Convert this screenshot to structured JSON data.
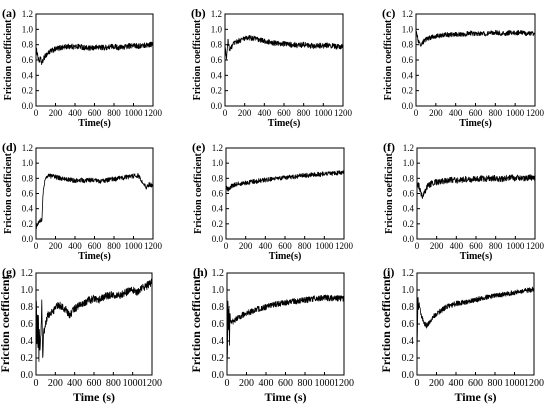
{
  "chart_data": [
    {
      "panel": "(a)",
      "type": "line",
      "title": "",
      "xlabel": "Time(s)",
      "ylabel": "Friction coefficient",
      "xlim": [
        0,
        1200
      ],
      "ylim": [
        0,
        1.2
      ],
      "xticks": [
        "0",
        "200",
        "400",
        "600",
        "800",
        "1000",
        "1200"
      ],
      "yticks": [
        "0.0",
        "0.2",
        "0.4",
        "0.6",
        "0.8",
        "1.0",
        "1.2"
      ],
      "grid": false,
      "noise": 0.035,
      "series": [
        {
          "x": [
            0,
            15,
            30,
            45,
            60,
            80,
            100,
            130,
            160,
            200,
            250,
            300,
            350,
            400,
            450,
            500,
            550,
            600,
            650,
            700,
            750,
            800,
            850,
            900,
            950,
            1000,
            1050,
            1100,
            1150,
            1200
          ],
          "y": [
            0.75,
            0.68,
            0.58,
            0.62,
            0.55,
            0.62,
            0.66,
            0.7,
            0.72,
            0.74,
            0.76,
            0.77,
            0.78,
            0.77,
            0.78,
            0.76,
            0.75,
            0.76,
            0.77,
            0.76,
            0.77,
            0.78,
            0.76,
            0.77,
            0.78,
            0.79,
            0.78,
            0.79,
            0.8,
            0.81
          ]
        }
      ]
    },
    {
      "panel": "(b)",
      "type": "line",
      "title": "",
      "xlabel": "Time(s)",
      "ylabel": "Friction coefficient",
      "xlim": [
        0,
        1200
      ],
      "ylim": [
        0,
        1.2
      ],
      "xticks": [
        "0",
        "200",
        "400",
        "600",
        "800",
        "1000",
        "1200"
      ],
      "yticks": [
        "0.0",
        "0.2",
        "0.4",
        "0.6",
        "0.8",
        "1.0",
        "1.2"
      ],
      "grid": false,
      "noise": 0.035,
      "series": [
        {
          "x": [
            0,
            15,
            30,
            50,
            80,
            120,
            160,
            200,
            250,
            300,
            350,
            400,
            450,
            500,
            550,
            600,
            650,
            700,
            750,
            800,
            850,
            900,
            950,
            1000,
            1050,
            1100,
            1150,
            1200
          ],
          "y": [
            0.8,
            0.62,
            0.85,
            0.72,
            0.8,
            0.84,
            0.86,
            0.88,
            0.89,
            0.88,
            0.86,
            0.85,
            0.83,
            0.82,
            0.82,
            0.81,
            0.8,
            0.8,
            0.79,
            0.8,
            0.79,
            0.78,
            0.79,
            0.78,
            0.8,
            0.78,
            0.77,
            0.78
          ]
        }
      ]
    },
    {
      "panel": "(c)",
      "type": "line",
      "title": "",
      "xlabel": "Time(s)",
      "ylabel": "Friction coefficient",
      "xlim": [
        0,
        1200
      ],
      "ylim": [
        0,
        1.2
      ],
      "xticks": [
        "0",
        "200",
        "400",
        "600",
        "800",
        "1000",
        "1200"
      ],
      "yticks": [
        "0.0",
        "0.2",
        "0.4",
        "0.6",
        "0.8",
        "1.0",
        "1.2"
      ],
      "grid": false,
      "noise": 0.03,
      "series": [
        {
          "x": [
            0,
            15,
            30,
            50,
            80,
            120,
            160,
            200,
            250,
            300,
            350,
            400,
            450,
            500,
            550,
            600,
            650,
            700,
            750,
            800,
            850,
            900,
            950,
            1000,
            1050,
            1100,
            1150,
            1200
          ],
          "y": [
            0.98,
            0.9,
            0.82,
            0.78,
            0.85,
            0.88,
            0.9,
            0.91,
            0.92,
            0.93,
            0.93,
            0.94,
            0.93,
            0.94,
            0.95,
            0.94,
            0.95,
            0.94,
            0.95,
            0.96,
            0.95,
            0.94,
            0.96,
            0.95,
            0.96,
            0.95,
            0.94,
            0.95
          ]
        }
      ]
    },
    {
      "panel": "(d)",
      "type": "line",
      "title": "",
      "xlabel": "Time(s)",
      "ylabel": "Friction coefficient",
      "xlim": [
        0,
        1200
      ],
      "ylim": [
        0,
        1.2
      ],
      "xticks": [
        "0",
        "200",
        "400",
        "600",
        "800",
        "1000",
        "1200"
      ],
      "yticks": [
        "0.0",
        "0.2",
        "0.4",
        "0.6",
        "0.8",
        "1.0",
        "1.2"
      ],
      "grid": false,
      "noise": 0.03,
      "series": [
        {
          "x": [
            0,
            10,
            20,
            40,
            60,
            70,
            80,
            100,
            120,
            150,
            200,
            250,
            300,
            350,
            400,
            450,
            500,
            550,
            600,
            650,
            700,
            750,
            800,
            850,
            900,
            950,
            1000,
            1050,
            1080,
            1100,
            1130,
            1160,
            1200
          ],
          "y": [
            0.15,
            0.18,
            0.22,
            0.24,
            0.25,
            0.55,
            0.7,
            0.8,
            0.84,
            0.83,
            0.82,
            0.8,
            0.79,
            0.78,
            0.77,
            0.78,
            0.77,
            0.78,
            0.77,
            0.76,
            0.77,
            0.78,
            0.79,
            0.8,
            0.81,
            0.82,
            0.83,
            0.84,
            0.76,
            0.72,
            0.68,
            0.72,
            0.7
          ]
        }
      ]
    },
    {
      "panel": "(e)",
      "type": "line",
      "title": "",
      "xlabel": "Time(s)",
      "ylabel": "Friction coefficient",
      "xlim": [
        0,
        1200
      ],
      "ylim": [
        0,
        1.2
      ],
      "xticks": [
        "0",
        "200",
        "400",
        "600",
        "800",
        "1000",
        "1200"
      ],
      "yticks": [
        "0.0",
        "0.2",
        "0.4",
        "0.6",
        "0.8",
        "1.0",
        "1.2"
      ],
      "grid": false,
      "noise": 0.03,
      "series": [
        {
          "x": [
            0,
            20,
            40,
            60,
            100,
            150,
            200,
            250,
            300,
            350,
            400,
            450,
            500,
            550,
            600,
            650,
            700,
            750,
            800,
            850,
            900,
            950,
            1000,
            1050,
            1100,
            1150,
            1200
          ],
          "y": [
            0.7,
            0.65,
            0.68,
            0.7,
            0.72,
            0.73,
            0.74,
            0.75,
            0.76,
            0.77,
            0.78,
            0.79,
            0.8,
            0.8,
            0.81,
            0.82,
            0.82,
            0.83,
            0.84,
            0.84,
            0.85,
            0.85,
            0.86,
            0.86,
            0.87,
            0.87,
            0.88
          ]
        }
      ]
    },
    {
      "panel": "(f)",
      "type": "line",
      "title": "",
      "xlabel": "Time(s)",
      "ylabel": "Friction coefficient",
      "xlim": [
        0,
        1200
      ],
      "ylim": [
        0,
        1.2
      ],
      "xticks": [
        "0",
        "200",
        "400",
        "600",
        "800",
        "1000",
        "1200"
      ],
      "yticks": [
        "0.0",
        "0.2",
        "0.4",
        "0.6",
        "0.8",
        "1.0",
        "1.2"
      ],
      "grid": false,
      "noise": 0.04,
      "series": [
        {
          "x": [
            0,
            20,
            40,
            60,
            80,
            100,
            130,
            160,
            200,
            250,
            300,
            350,
            400,
            450,
            500,
            550,
            600,
            650,
            700,
            750,
            800,
            850,
            900,
            950,
            1000,
            1050,
            1100,
            1150,
            1200
          ],
          "y": [
            0.72,
            0.7,
            0.6,
            0.55,
            0.62,
            0.68,
            0.72,
            0.74,
            0.75,
            0.76,
            0.77,
            0.78,
            0.77,
            0.78,
            0.79,
            0.78,
            0.79,
            0.8,
            0.79,
            0.8,
            0.8,
            0.79,
            0.8,
            0.81,
            0.8,
            0.81,
            0.8,
            0.81,
            0.8
          ]
        }
      ]
    },
    {
      "panel": "(g)",
      "type": "line",
      "title": "",
      "xlabel": "Time (s)",
      "ylabel": "Friction coefficient",
      "xlim": [
        0,
        1200
      ],
      "ylim": [
        0,
        1.2
      ],
      "xticks": [
        "0",
        "200",
        "400",
        "600",
        "800",
        "1000",
        "1200"
      ],
      "yticks": [
        "0.0",
        "0.2",
        "0.4",
        "0.6",
        "0.8",
        "1.0",
        "1.2"
      ],
      "grid": false,
      "noise": 0.045,
      "series": [
        {
          "x": [
            0,
            5,
            10,
            15,
            20,
            25,
            30,
            35,
            40,
            50,
            60,
            70,
            80,
            100,
            120,
            150,
            180,
            200,
            250,
            300,
            350,
            400,
            450,
            500,
            550,
            600,
            650,
            700,
            750,
            800,
            850,
            900,
            950,
            1000,
            1050,
            1100,
            1150,
            1200
          ],
          "y": [
            0.2,
            0.95,
            0.3,
            0.8,
            0.25,
            0.7,
            0.2,
            0.55,
            0.3,
            0.45,
            0.85,
            0.2,
            0.5,
            0.6,
            0.7,
            0.72,
            0.75,
            0.8,
            0.82,
            0.78,
            0.7,
            0.78,
            0.82,
            0.85,
            0.88,
            0.9,
            0.88,
            0.92,
            0.94,
            0.95,
            0.93,
            0.96,
            0.98,
            1.0,
            0.97,
            1.02,
            1.05,
            1.1
          ]
        }
      ]
    },
    {
      "panel": "(h)",
      "type": "line",
      "title": "",
      "xlabel": "Time (s)",
      "ylabel": "Friction coefficient",
      "xlim": [
        0,
        1200
      ],
      "ylim": [
        0,
        1.2
      ],
      "xticks": [
        "0",
        "200",
        "400",
        "600",
        "800",
        "1000",
        "1200"
      ],
      "yticks": [
        "0.0",
        "0.2",
        "0.4",
        "0.6",
        "0.8",
        "1.0",
        "1.2"
      ],
      "grid": false,
      "noise": 0.035,
      "series": [
        {
          "x": [
            0,
            5,
            10,
            15,
            20,
            25,
            30,
            40,
            50,
            70,
            100,
            150,
            200,
            250,
            300,
            350,
            400,
            450,
            500,
            550,
            600,
            650,
            700,
            750,
            800,
            850,
            900,
            950,
            1000,
            1050,
            1100,
            1150,
            1200
          ],
          "y": [
            0.1,
            0.25,
            1.0,
            0.4,
            0.85,
            0.3,
            0.7,
            0.65,
            0.62,
            0.64,
            0.66,
            0.7,
            0.72,
            0.75,
            0.77,
            0.78,
            0.8,
            0.82,
            0.83,
            0.84,
            0.85,
            0.86,
            0.87,
            0.87,
            0.88,
            0.89,
            0.9,
            0.9,
            0.91,
            0.9,
            0.91,
            0.9,
            0.9
          ]
        }
      ]
    },
    {
      "panel": "(i)",
      "type": "line",
      "title": "",
      "xlabel": "Time (s)",
      "ylabel": "Friction coefficient",
      "xlim": [
        0,
        1200
      ],
      "ylim": [
        0,
        1.2
      ],
      "xticks": [
        "0",
        "200",
        "400",
        "600",
        "800",
        "1000",
        "1200"
      ],
      "yticks": [
        "0.0",
        "0.2",
        "0.4",
        "0.6",
        "0.8",
        "1.0",
        "1.2"
      ],
      "grid": false,
      "noise": 0.03,
      "series": [
        {
          "x": [
            0,
            5,
            10,
            15,
            20,
            30,
            40,
            60,
            80,
            100,
            130,
            160,
            200,
            250,
            300,
            350,
            400,
            450,
            500,
            550,
            600,
            650,
            700,
            750,
            800,
            850,
            900,
            950,
            1000,
            1050,
            1100,
            1150,
            1200
          ],
          "y": [
            0.3,
            0.55,
            0.95,
            0.75,
            0.85,
            0.78,
            0.72,
            0.65,
            0.6,
            0.58,
            0.62,
            0.68,
            0.72,
            0.76,
            0.8,
            0.82,
            0.84,
            0.85,
            0.86,
            0.87,
            0.88,
            0.9,
            0.91,
            0.92,
            0.93,
            0.94,
            0.95,
            0.96,
            0.97,
            0.98,
            0.99,
            1.0,
            1.01
          ]
        }
      ]
    }
  ]
}
